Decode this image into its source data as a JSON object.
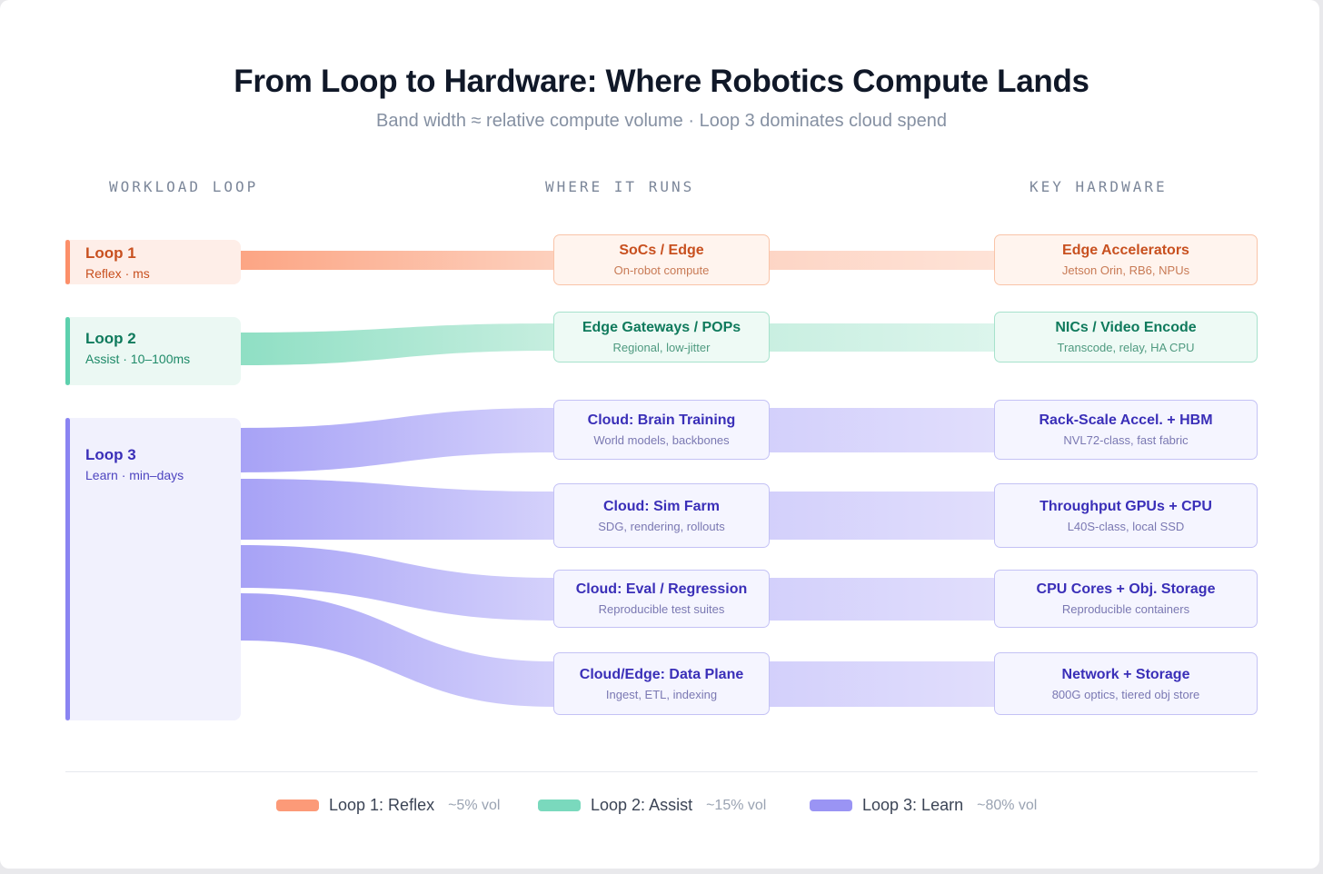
{
  "title": "From Loop to Hardware: Where Robotics Compute Lands",
  "subtitle": "Band width ≈ relative compute volume · Loop 3 dominates cloud spend",
  "columns": {
    "workload": "WORKLOAD LOOP",
    "runs": "WHERE IT RUNS",
    "hardware": "KEY HARDWARE"
  },
  "colors": {
    "loop1": "#fc9a78",
    "loop2": "#7ad9bd",
    "loop3": "#9a94f4"
  },
  "loops": [
    {
      "name": "Loop 1",
      "sub": "Reflex · ms"
    },
    {
      "name": "Loop 2",
      "sub": "Assist · 10–100ms"
    },
    {
      "name": "Loop 3",
      "sub": "Learn · min–days"
    }
  ],
  "runs": [
    {
      "name": "SoCs / Edge",
      "sub": "On-robot compute"
    },
    {
      "name": "Edge Gateways / POPs",
      "sub": "Regional, low-jitter"
    },
    {
      "name": "Cloud: Brain Training",
      "sub": "World models, backbones"
    },
    {
      "name": "Cloud: Sim Farm",
      "sub": "SDG, rendering, rollouts"
    },
    {
      "name": "Cloud: Eval / Regression",
      "sub": "Reproducible test suites"
    },
    {
      "name": "Cloud/Edge: Data Plane",
      "sub": "Ingest, ETL, indexing"
    }
  ],
  "hardware": [
    {
      "name": "Edge Accelerators",
      "sub": "Jetson Orin, RB6, NPUs"
    },
    {
      "name": "NICs / Video Encode",
      "sub": "Transcode, relay, HA CPU"
    },
    {
      "name": "Rack-Scale Accel. + HBM",
      "sub": "NVL72-class, fast fabric"
    },
    {
      "name": "Throughput GPUs + CPU",
      "sub": "L40S-class, local SSD"
    },
    {
      "name": "CPU Cores + Obj. Storage",
      "sub": "Reproducible containers"
    },
    {
      "name": "Network + Storage",
      "sub": "800G optics, tiered obj store"
    }
  ],
  "legend": [
    {
      "name": "Loop 1: Reflex",
      "vol": "~5% vol"
    },
    {
      "name": "Loop 2: Assist",
      "vol": "~15% vol"
    },
    {
      "name": "Loop 3: Learn",
      "vol": "~80% vol"
    }
  ]
}
